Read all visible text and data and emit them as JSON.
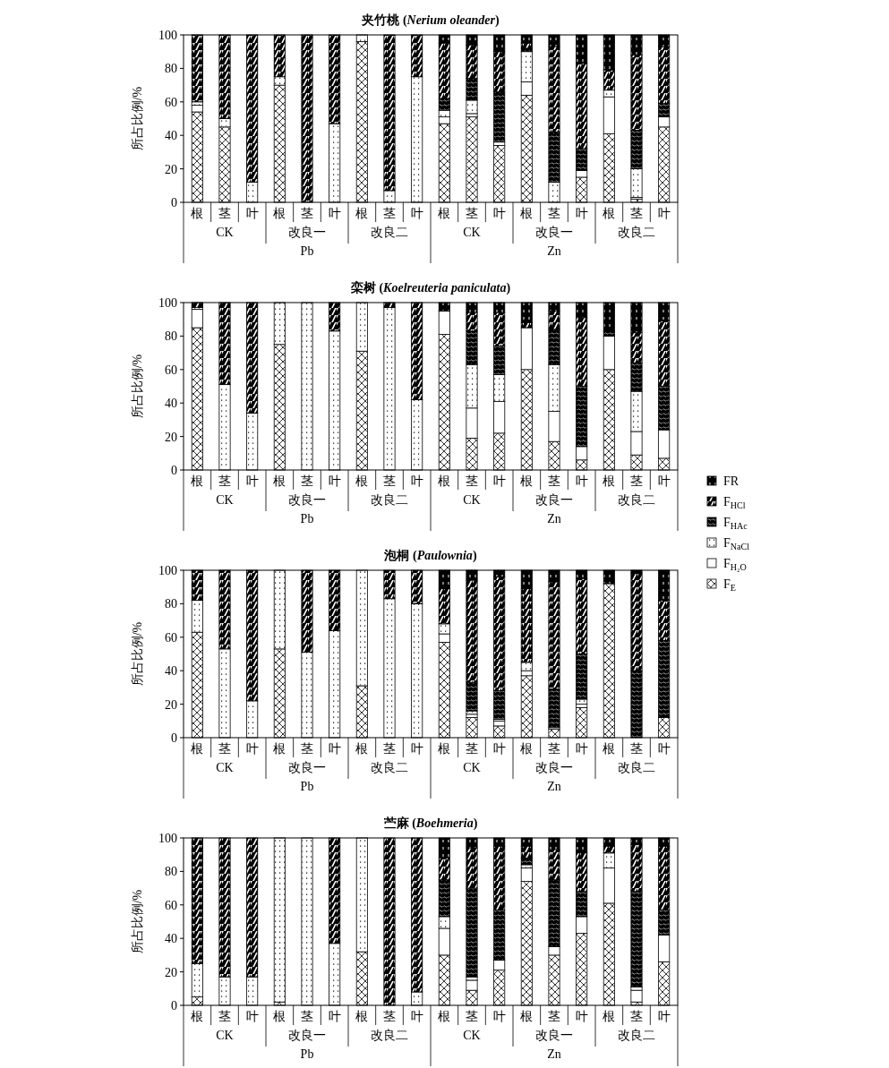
{
  "chart_data": [
    {
      "type": "bar",
      "stacked": true,
      "title": "夹竹桃 (Nerium oleander)",
      "ylabel": "所占比例/%",
      "ylim": [
        0,
        100
      ],
      "yticks": [
        0,
        20,
        40,
        60,
        80,
        100
      ],
      "categories": [
        "根",
        "茎",
        "叶",
        "根",
        "茎",
        "叶",
        "根",
        "茎",
        "叶",
        "根",
        "茎",
        "叶",
        "根",
        "茎",
        "叶",
        "根",
        "茎",
        "叶"
      ],
      "annotations": [
        "CK",
        "改良一",
        "改良二",
        "CK",
        "改良一",
        "改良二",
        "Pb",
        "Zn"
      ],
      "series": [
        {
          "color": "#ffffff",
          "values": [
            54,
            45,
            0,
            70,
            0,
            0,
            96,
            0,
            0,
            47,
            51,
            34,
            64,
            0,
            15,
            41,
            2,
            45
          ]
        },
        {
          "color": "#ffffff",
          "values": [
            4,
            0,
            0,
            0,
            0,
            0,
            0,
            0,
            0,
            4,
            2,
            2,
            8,
            0,
            4,
            22,
            1,
            6
          ]
        },
        {
          "color": "#ffffff",
          "values": [
            2,
            5,
            12,
            5,
            0,
            47,
            4,
            7,
            75,
            4,
            8,
            0,
            18,
            12,
            0,
            4,
            17,
            0
          ]
        },
        {
          "color": "#000000",
          "values": [
            0,
            0,
            0,
            0,
            0,
            0,
            0,
            0,
            0,
            7,
            13,
            30,
            2,
            30,
            13,
            0,
            23,
            8
          ]
        },
        {
          "color": "#000000",
          "values": [
            40,
            50,
            88,
            25,
            100,
            53,
            0,
            93,
            25,
            33,
            20,
            24,
            3,
            51,
            51,
            12,
            45,
            34
          ]
        },
        {
          "color": "#000000",
          "values": [
            0,
            0,
            0,
            0,
            0,
            0,
            0,
            0,
            0,
            5,
            6,
            10,
            5,
            7,
            17,
            21,
            12,
            7
          ]
        }
      ]
    },
    {
      "type": "bar",
      "stacked": true,
      "title": "栾树 (Koelreuteria paniculata)",
      "ylabel": "所占比例/%",
      "ylim": [
        0,
        100
      ],
      "yticks": [
        0,
        20,
        40,
        60,
        80,
        100
      ],
      "legend": "right",
      "categories": [
        "根",
        "茎",
        "叶",
        "根",
        "茎",
        "叶",
        "根",
        "茎",
        "叶",
        "根",
        "茎",
        "叶",
        "根",
        "茎",
        "叶",
        "根",
        "茎",
        "叶"
      ],
      "annotations": [
        "CK",
        "改良一",
        "改良二",
        "CK",
        "改良一",
        "改良二",
        "Pb",
        "Zn"
      ],
      "series": [
        {
          "name": "F$_{E}$",
          "color": "#ffffff",
          "values": [
            85,
            0,
            0,
            75,
            0,
            0,
            71,
            0,
            0,
            81,
            19,
            22,
            60,
            17,
            6,
            60,
            9,
            7
          ]
        },
        {
          "name": "F$_{H₂O}$",
          "color": "#ffffff",
          "values": [
            11,
            0,
            0,
            0,
            0,
            0,
            0,
            0,
            0,
            14,
            18,
            19,
            25,
            18,
            8,
            20,
            14,
            17
          ]
        },
        {
          "name": "F$_{NaCl}$",
          "color": "#ffffff",
          "values": [
            1,
            51,
            34,
            25,
            100,
            83,
            29,
            97,
            42,
            0,
            26,
            16,
            0,
            28,
            0,
            0,
            24,
            0
          ]
        },
        {
          "name": "F$_{HAc}$",
          "color": "#000000",
          "values": [
            0,
            0,
            0,
            0,
            0,
            0,
            0,
            0,
            0,
            0,
            20,
            17,
            0,
            21,
            36,
            3,
            17,
            26
          ]
        },
        {
          "name": "F$_{HCl}$",
          "color": "#000000",
          "values": [
            3,
            49,
            66,
            0,
            0,
            17,
            0,
            3,
            58,
            0,
            11,
            20,
            3,
            11,
            41,
            0,
            18,
            39
          ]
        },
        {
          "name": "FR",
          "color": "#000000",
          "values": [
            0,
            0,
            0,
            0,
            0,
            0,
            0,
            0,
            0,
            5,
            6,
            6,
            12,
            5,
            9,
            17,
            18,
            11
          ]
        }
      ]
    },
    {
      "type": "bar",
      "stacked": true,
      "title": "泡桐 (Paulownia)",
      "ylabel": "所占比例/%",
      "ylim": [
        0,
        100
      ],
      "yticks": [
        0,
        20,
        40,
        60,
        80,
        100
      ],
      "categories": [
        "根",
        "茎",
        "叶",
        "根",
        "茎",
        "叶",
        "根",
        "茎",
        "叶",
        "根",
        "茎",
        "叶",
        "根",
        "茎",
        "叶",
        "根",
        "茎",
        "叶"
      ],
      "annotations": [
        "CK",
        "改良一",
        "改良二",
        "CK",
        "改良一",
        "改良二",
        "Pb",
        "Zn"
      ],
      "series": [
        {
          "color": "#ffffff",
          "values": [
            63,
            0,
            0,
            53,
            0,
            0,
            31,
            0,
            0,
            57,
            12,
            7,
            37,
            5,
            18,
            92,
            0,
            12
          ]
        },
        {
          "color": "#ffffff",
          "values": [
            0,
            0,
            0,
            0,
            0,
            0,
            0,
            0,
            0,
            5,
            2,
            3,
            3,
            1,
            2,
            0,
            0,
            0
          ]
        },
        {
          "color": "#ffffff",
          "values": [
            19,
            53,
            22,
            47,
            51,
            64,
            69,
            83,
            80,
            6,
            2,
            1,
            5,
            0,
            3,
            0,
            0,
            0
          ]
        },
        {
          "color": "#000000",
          "values": [
            0,
            0,
            0,
            0,
            0,
            0,
            0,
            0,
            0,
            0,
            17,
            17,
            0,
            23,
            27,
            0,
            40,
            46
          ]
        },
        {
          "color": "#000000",
          "values": [
            18,
            47,
            78,
            0,
            49,
            36,
            0,
            17,
            20,
            21,
            61,
            68,
            44,
            64,
            45,
            0,
            58,
            24
          ]
        },
        {
          "color": "#000000",
          "values": [
            0,
            0,
            0,
            0,
            0,
            0,
            0,
            0,
            0,
            11,
            6,
            4,
            11,
            7,
            5,
            8,
            2,
            18
          ]
        }
      ]
    },
    {
      "type": "bar",
      "stacked": true,
      "title": "苎麻 (Boehmeria)",
      "ylabel": "所占比例/%",
      "ylim": [
        0,
        100
      ],
      "yticks": [
        0,
        20,
        40,
        60,
        80,
        100
      ],
      "categories": [
        "根",
        "茎",
        "叶",
        "根",
        "茎",
        "叶",
        "根",
        "茎",
        "叶",
        "根",
        "茎",
        "叶",
        "根",
        "茎",
        "叶",
        "根",
        "茎",
        "叶"
      ],
      "annotations": [
        "CK",
        "改良一",
        "改良二",
        "CK",
        "改良一",
        "改良二",
        "Pb",
        "Zn"
      ],
      "series": [
        {
          "color": "#ffffff",
          "values": [
            5,
            0,
            0,
            2,
            0,
            0,
            32,
            0,
            0,
            30,
            9,
            21,
            74,
            30,
            43,
            61,
            2,
            26
          ]
        },
        {
          "color": "#ffffff",
          "values": [
            0,
            0,
            0,
            0,
            0,
            0,
            0,
            0,
            0,
            16,
            6,
            6,
            8,
            5,
            10,
            21,
            7,
            16
          ]
        },
        {
          "color": "#ffffff",
          "values": [
            20,
            17,
            17,
            98,
            100,
            37,
            68,
            0,
            8,
            7,
            2,
            0,
            2,
            0,
            0,
            9,
            2,
            0
          ]
        },
        {
          "color": "#000000",
          "values": [
            0,
            0,
            0,
            0,
            0,
            0,
            0,
            0,
            0,
            22,
            53,
            30,
            4,
            40,
            15,
            0,
            57,
            15
          ]
        },
        {
          "color": "#000000",
          "values": [
            75,
            83,
            83,
            0,
            0,
            63,
            0,
            100,
            92,
            13,
            24,
            38,
            7,
            18,
            23,
            4,
            28,
            38
          ]
        },
        {
          "color": "#000000",
          "values": [
            0,
            0,
            0,
            0,
            0,
            0,
            0,
            0,
            0,
            12,
            6,
            5,
            5,
            7,
            9,
            5,
            4,
            5
          ]
        }
      ]
    }
  ]
}
